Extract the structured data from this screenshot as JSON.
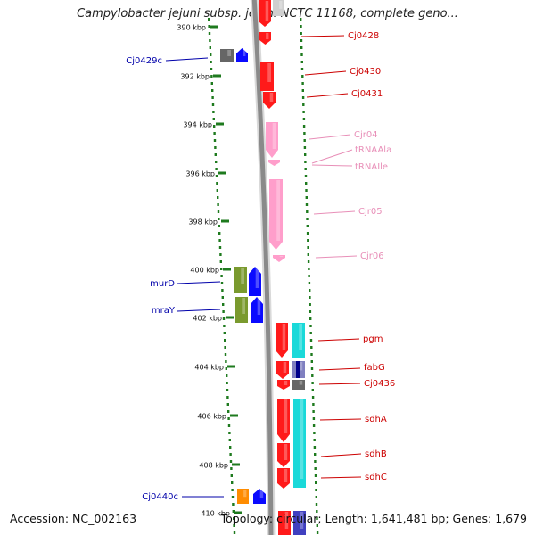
{
  "title": "Campylobacter jejuni subsp. jejuni NCTC 11168, complete geno...",
  "footer": {
    "accession": "Accession: NC_002163",
    "summary": "Topology: circular; Length: 1,641,481 bp; Genes: 1,679"
  },
  "colors": {
    "background": "#ffffff",
    "tick_dots": "#1e7a1e",
    "dna_strand": "#8a8a8a",
    "forward_gene": "#ff1a1a",
    "trna_rrna_gene": "#ff9ecb",
    "reverse_gene_blue": "#0a0aff",
    "reverse_gene_olive": "#7a9a2e",
    "cyan_gene": "#1ad9d9",
    "grey_gene": "#666666",
    "orange_gene": "#ff8c00",
    "label_red": "#cc0000",
    "label_pink": "#e88fb8",
    "label_blue": "#0000aa"
  },
  "scale": {
    "unit": "kbp",
    "ticks": [
      {
        "value": 390,
        "label": "390 kbp"
      },
      {
        "value": 392,
        "label": "392 kbp"
      },
      {
        "value": 394,
        "label": "394 kbp"
      },
      {
        "value": 396,
        "label": "396 kbp"
      },
      {
        "value": 398,
        "label": "398 kbp"
      },
      {
        "value": 400,
        "label": "400 kbp"
      },
      {
        "value": 402,
        "label": "402 kbp"
      },
      {
        "value": 404,
        "label": "404 kbp"
      },
      {
        "value": 406,
        "label": "406 kbp"
      },
      {
        "value": 408,
        "label": "408 kbp"
      },
      {
        "value": 410,
        "label": "410 kbp"
      }
    ]
  },
  "gene_labels": [
    {
      "text": "Cj0428",
      "color": "label_red"
    },
    {
      "text": "Cj0430",
      "color": "label_red"
    },
    {
      "text": "Cj0431",
      "color": "label_red"
    },
    {
      "text": "Cjr04",
      "color": "label_pink"
    },
    {
      "text": "tRNAAla",
      "color": "label_pink"
    },
    {
      "text": "tRNAIle",
      "color": "label_pink"
    },
    {
      "text": "Cjr05",
      "color": "label_pink"
    },
    {
      "text": "Cjr06",
      "color": "label_pink"
    },
    {
      "text": "pgm",
      "color": "label_red"
    },
    {
      "text": "fabG",
      "color": "label_red"
    },
    {
      "text": "Cj0436",
      "color": "label_red"
    },
    {
      "text": "sdhA",
      "color": "label_red"
    },
    {
      "text": "sdhB",
      "color": "label_red"
    },
    {
      "text": "sdhC",
      "color": "label_red"
    },
    {
      "text": "Cj0429c",
      "color": "label_blue"
    },
    {
      "text": "murD",
      "color": "label_blue"
    },
    {
      "text": "mraY",
      "color": "label_blue"
    },
    {
      "text": "Cj0440c",
      "color": "label_blue"
    }
  ]
}
